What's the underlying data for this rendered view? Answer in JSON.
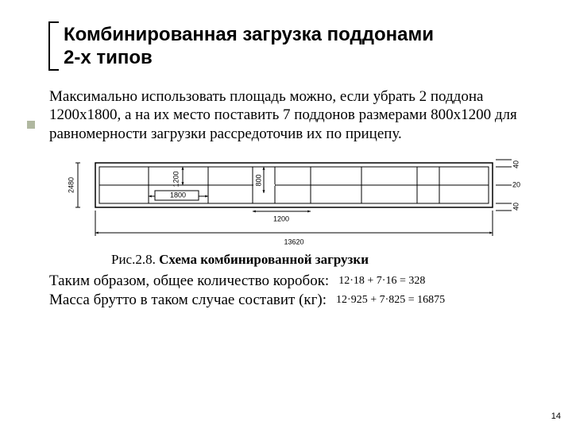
{
  "title_line1": "Комбинированная загрузка поддонами",
  "title_line2": "2-х типов",
  "paragraph": "Максимально использовать площадь можно, если убрать 2 поддона 1200х1800, а на их место поставить 7 поддонов размерами 800х1200 для равномерности загрузки рассредоточив их по прицепу.",
  "figure": {
    "number": "Рис.2.8.",
    "name": "Схема комбинированной загрузки",
    "labels": {
      "height_left": "2480",
      "width_total": "13620",
      "half": "1200",
      "w1800": "1800",
      "w800": "800",
      "w1200_inner": "1200",
      "clr_top": "40",
      "clr_mid": "20",
      "clr_bot": "40"
    },
    "colors": {
      "stroke": "#000000",
      "bg": "#ffffff",
      "dim_font": "9px"
    }
  },
  "line_boxes_label": "Таким образом, общее количество коробок:",
  "formula_boxes": "12·18 + 7·16 = 328",
  "line_mass_label": "Масса брутто в таком случае составит (кг):",
  "formula_mass": "12·925 + 7·825 = 16875",
  "page_number": "14"
}
